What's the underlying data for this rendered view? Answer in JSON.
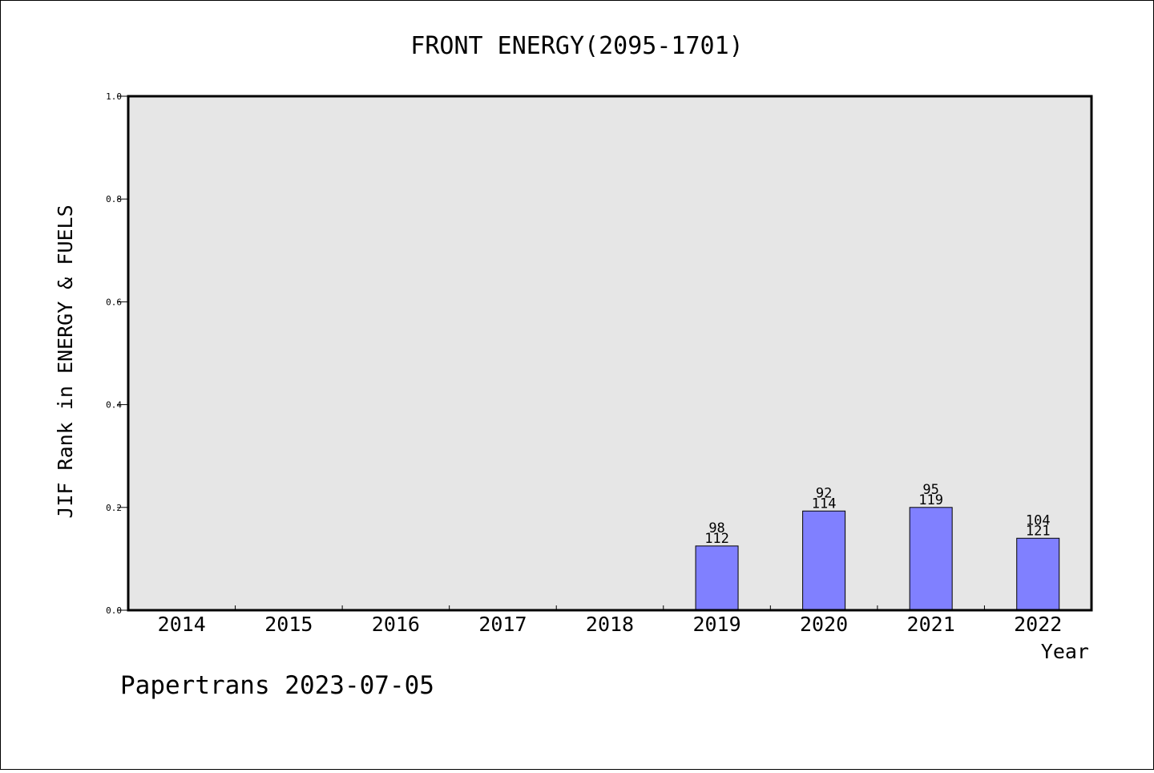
{
  "chart_data": {
    "type": "bar",
    "title": "FRONT ENERGY(2095-1701)",
    "xlabel": "Year",
    "ylabel": "JIF Rank in ENERGY & FUELS",
    "categories": [
      "2014",
      "2015",
      "2016",
      "2017",
      "2018",
      "2019",
      "2020",
      "2021",
      "2022"
    ],
    "values": [
      null,
      null,
      null,
      null,
      null,
      0.125,
      0.193,
      0.2,
      0.14
    ],
    "rank_labels": [
      "",
      "",
      "",
      "",
      "",
      "98",
      "92",
      "95",
      "104"
    ],
    "total_labels": [
      "",
      "",
      "",
      "",
      "",
      "112",
      "114",
      "119",
      "121"
    ],
    "ylim": [
      0,
      1.0
    ],
    "yticks": [
      "0.0",
      "0.2",
      "0.4",
      "0.6",
      "0.8",
      "1.0"
    ],
    "grid": false,
    "bar_color": "#8080ff",
    "background_color": "#e6e6e6"
  },
  "footer": {
    "text": "Papertrans 2023-07-05"
  }
}
